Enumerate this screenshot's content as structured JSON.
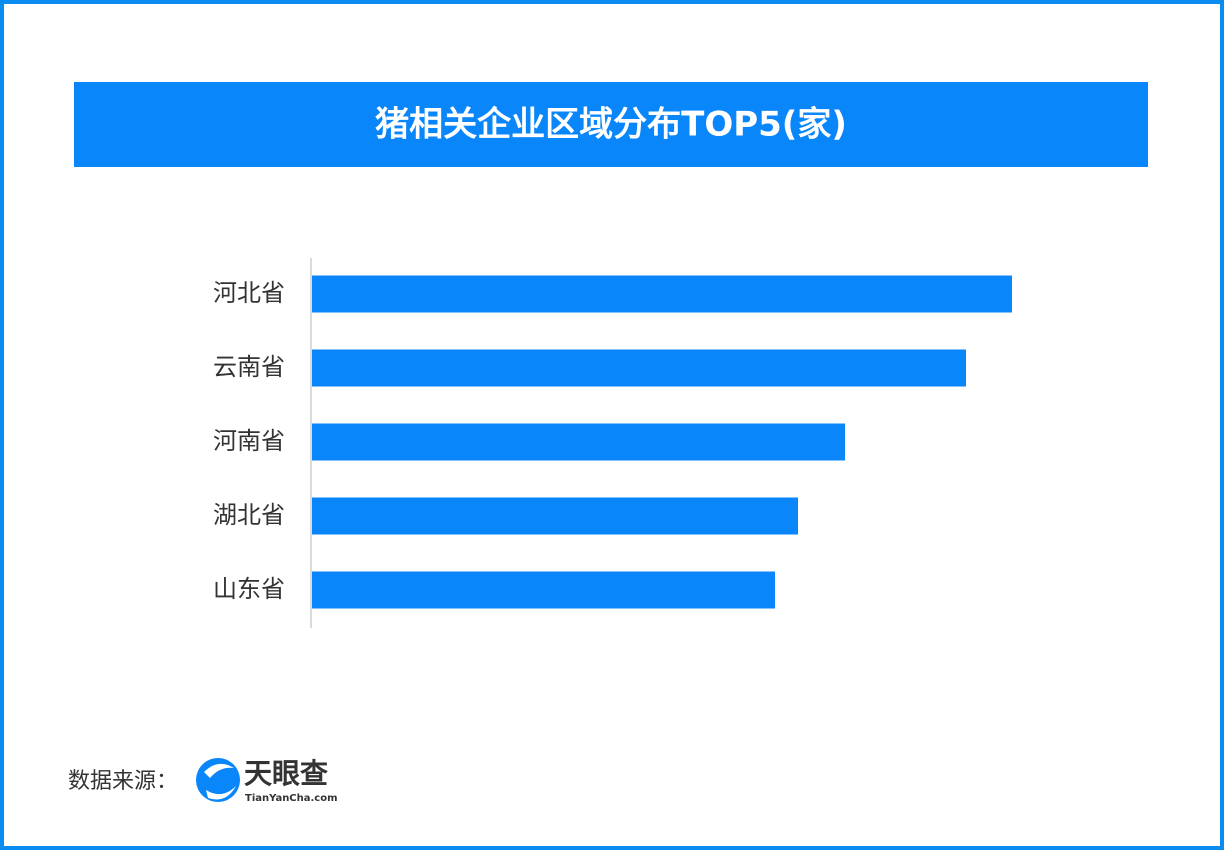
{
  "chart_data": {
    "type": "barh",
    "title": "猪相关企业区域分布TOP5(家)",
    "categories": [
      "河北省",
      "云南省",
      "河南省",
      "湖北省",
      "山东省"
    ],
    "values": [
      700,
      654,
      533,
      486,
      463
    ],
    "color": "#0a86fb",
    "xlim": [
      0,
      800
    ]
  },
  "source": {
    "label": "数据来源：",
    "brand": "天眼查",
    "site": "TianYanCha.com"
  }
}
